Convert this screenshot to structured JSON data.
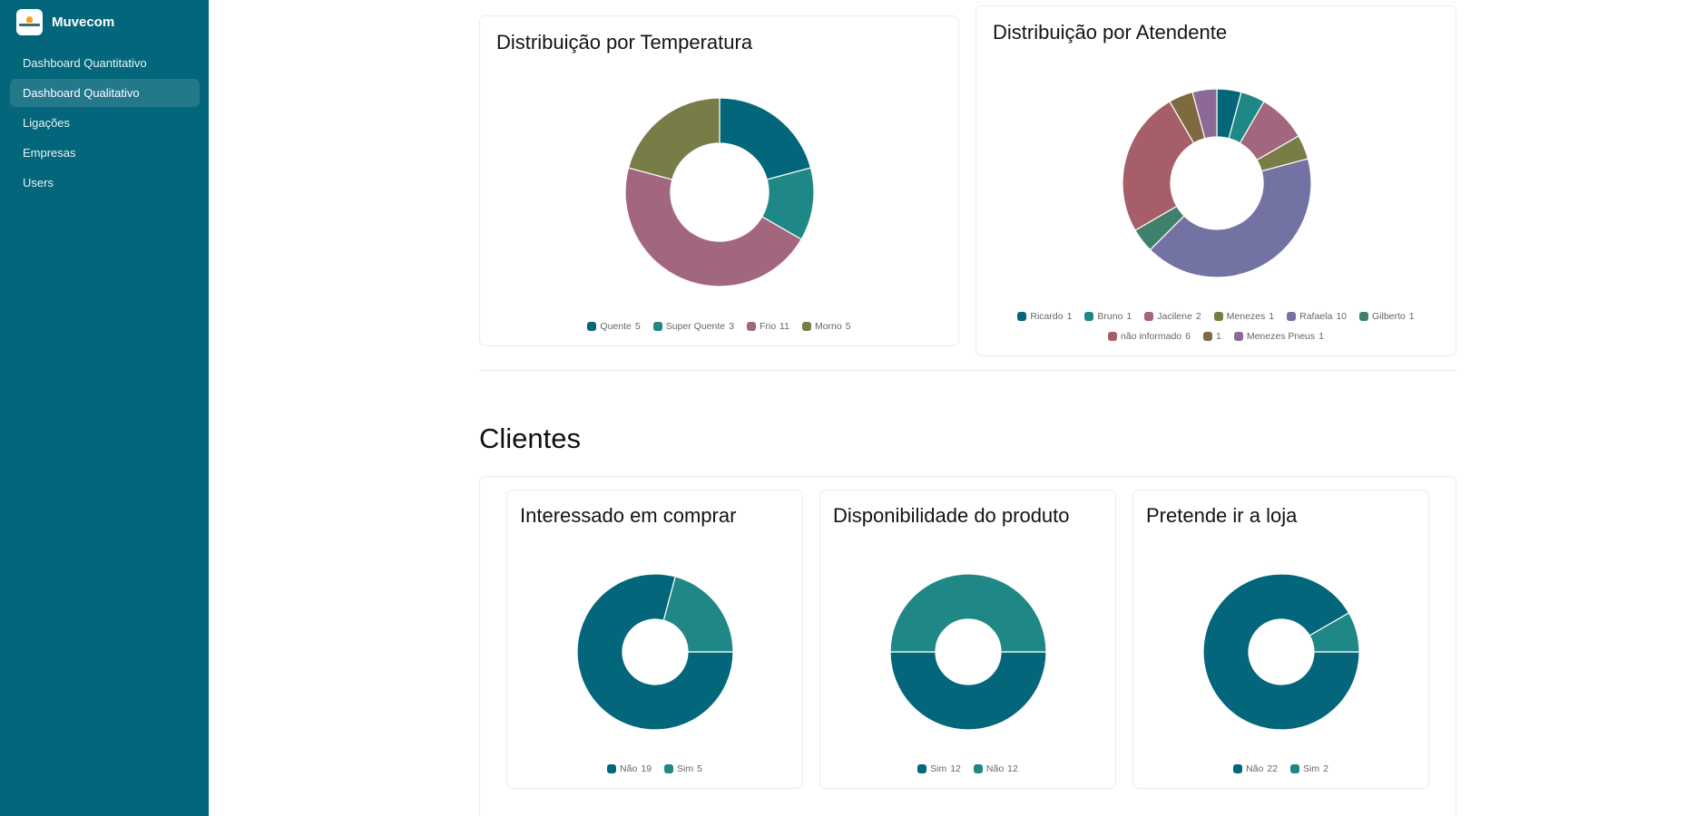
{
  "app": {
    "name": "Muvecom"
  },
  "sidebar": {
    "items": [
      {
        "label": "Dashboard Quantitativo"
      },
      {
        "label": "Dashboard Qualitativo"
      },
      {
        "label": "Ligações"
      },
      {
        "label": "Empresas"
      },
      {
        "label": "Users"
      }
    ]
  },
  "sections": {
    "clientes": "Clientes"
  },
  "colors": {
    "sidebar": "#04667a",
    "active": "#23788a"
  },
  "chart_data": [
    {
      "type": "pie",
      "title": "Distribuição por Temperatura",
      "legend": "bottom",
      "labels": [
        "Quente",
        "Super Quente",
        "Frio",
        "Morno"
      ],
      "values": [
        5,
        3,
        11,
        5
      ],
      "colors": [
        "#04667a",
        "#1f8785",
        "#a3667f",
        "#787d47"
      ],
      "start_angle": 90
    },
    {
      "type": "pie",
      "title": "Distribuição por Atendente",
      "legend": "bottom",
      "labels": [
        "Ricardo",
        "Bruno",
        "Jacilene",
        "Menezes",
        "Rafaela",
        "Gilberto",
        "não informado",
        "",
        "Menezes Pneus"
      ],
      "values": [
        1,
        1,
        2,
        1,
        10,
        1,
        6,
        1,
        1
      ],
      "colors": [
        "#04667a",
        "#1f8785",
        "#a3667f",
        "#787d47",
        "#7373a3",
        "#41806c",
        "#a65e68",
        "#7f6a3f",
        "#8c6a95"
      ],
      "start_angle": 90
    },
    {
      "type": "pie",
      "title": "Interessado em comprar",
      "legend": "bottom",
      "labels": [
        "Não",
        "Sim"
      ],
      "values": [
        19,
        5
      ],
      "colors": [
        "#04667a",
        "#1f8785"
      ],
      "start_angle": 0
    },
    {
      "type": "pie",
      "title": "Disponibilidade do produto",
      "legend": "bottom",
      "labels": [
        "Sim",
        "Não"
      ],
      "values": [
        12,
        12
      ],
      "colors": [
        "#04667a",
        "#1f8785"
      ],
      "start_angle": 0
    },
    {
      "type": "pie",
      "title": "Pretende ir a loja",
      "legend": "bottom",
      "labels": [
        "Não",
        "Sim"
      ],
      "values": [
        22,
        2
      ],
      "colors": [
        "#04667a",
        "#1f8785"
      ],
      "start_angle": 0
    }
  ]
}
